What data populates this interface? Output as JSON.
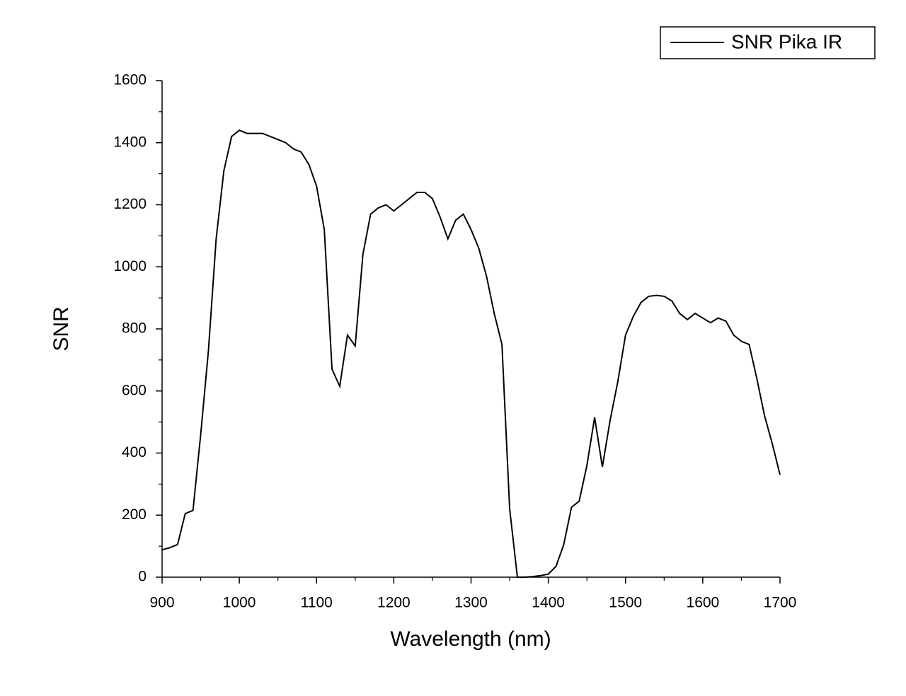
{
  "chart_data": {
    "type": "line",
    "xlabel": "Wavelength (nm)",
    "ylabel": "SNR",
    "x": [
      900,
      910,
      920,
      930,
      940,
      950,
      960,
      970,
      980,
      990,
      1000,
      1010,
      1020,
      1030,
      1040,
      1050,
      1060,
      1070,
      1080,
      1090,
      1100,
      1110,
      1120,
      1130,
      1140,
      1150,
      1160,
      1170,
      1180,
      1190,
      1200,
      1210,
      1220,
      1230,
      1240,
      1250,
      1260,
      1270,
      1280,
      1290,
      1300,
      1310,
      1320,
      1330,
      1340,
      1350,
      1360,
      1370,
      1380,
      1390,
      1400,
      1410,
      1420,
      1430,
      1440,
      1450,
      1460,
      1470,
      1480,
      1490,
      1500,
      1510,
      1520,
      1530,
      1540,
      1550,
      1560,
      1570,
      1580,
      1590,
      1600,
      1610,
      1620,
      1630,
      1640,
      1650,
      1660,
      1670,
      1680,
      1690,
      1700
    ],
    "series": [
      {
        "name": "SNR Pika IR",
        "color": "#000000",
        "values": [
          88,
          95,
          105,
          205,
          215,
          460,
          730,
          1090,
          1310,
          1420,
          1440,
          1430,
          1430,
          1430,
          1420,
          1410,
          1400,
          1380,
          1370,
          1330,
          1260,
          1120,
          670,
          615,
          780,
          745,
          1040,
          1170,
          1190,
          1200,
          1180,
          1200,
          1220,
          1240,
          1240,
          1220,
          1160,
          1090,
          1150,
          1170,
          1120,
          1060,
          970,
          850,
          750,
          220,
          0,
          0,
          2,
          5,
          10,
          35,
          105,
          225,
          245,
          360,
          515,
          355,
          505,
          630,
          780,
          840,
          885,
          905,
          908,
          905,
          890,
          850,
          830,
          850,
          835,
          820,
          835,
          825,
          780,
          760,
          750,
          640,
          520,
          430,
          330
        ]
      }
    ],
    "xlim": [
      900,
      1700
    ],
    "xticks": [
      900,
      1000,
      1100,
      1200,
      1300,
      1400,
      1500,
      1600,
      1700
    ],
    "ylim": [
      0,
      1600
    ],
    "yticks": [
      0,
      200,
      400,
      600,
      800,
      1000,
      1200,
      1400,
      1600
    ],
    "legend": "top-right"
  }
}
